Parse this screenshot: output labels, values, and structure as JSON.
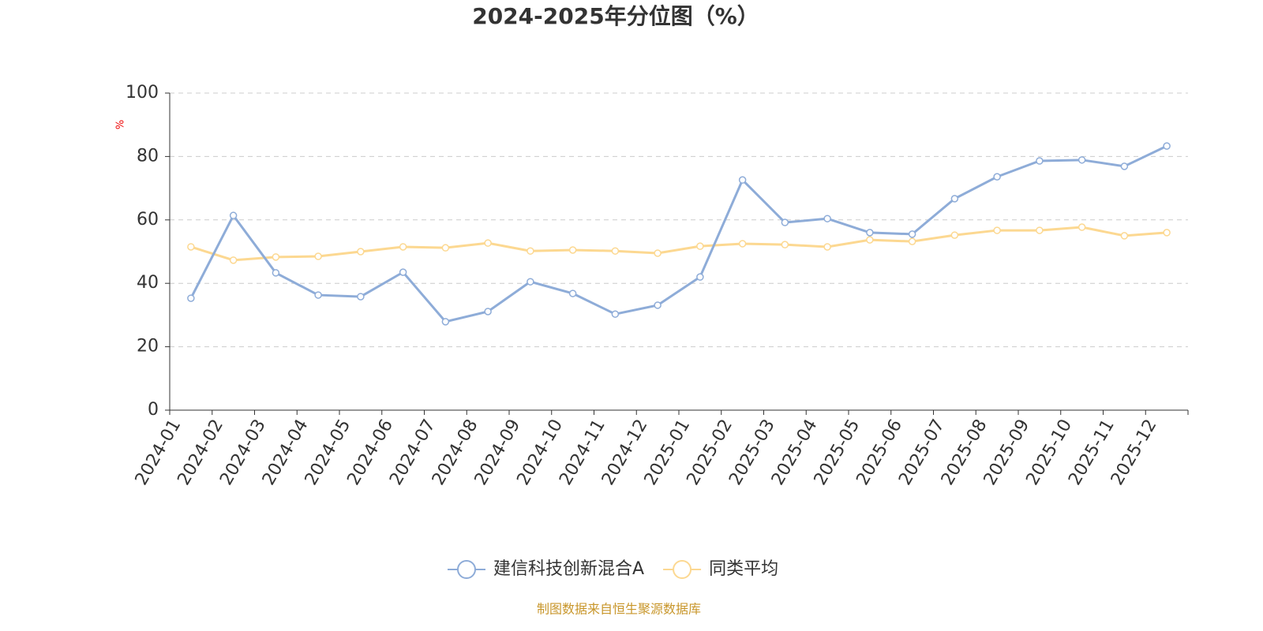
{
  "chart_data": {
    "type": "line",
    "title": "2024-2025年分位图（%）",
    "y_label": "%",
    "categories": [
      "2024-01",
      "2024-02",
      "2024-03",
      "2024-04",
      "2024-05",
      "2024-06",
      "2024-07",
      "2024-08",
      "2024-09",
      "2024-10",
      "2024-11",
      "2024-12",
      "2025-01",
      "2025-02",
      "2025-03",
      "2025-04",
      "2025-05",
      "2025-06",
      "2025-07",
      "2025-08",
      "2025-09",
      "2025-10",
      "2025-11",
      "2025-12"
    ],
    "series": [
      {
        "name": "建信科技创新混合A",
        "color": "#8eacd8",
        "values": [
          35.3,
          61.4,
          43.3,
          36.3,
          35.8,
          43.5,
          27.9,
          31.1,
          40.5,
          36.8,
          30.3,
          33.1,
          42.0,
          72.6,
          59.2,
          60.4,
          56.0,
          55.5,
          66.7,
          73.6,
          78.6,
          78.9,
          76.9,
          83.3
        ]
      },
      {
        "name": "同类平均",
        "color": "#fcd891",
        "values": [
          51.5,
          47.3,
          48.3,
          48.5,
          50.0,
          51.5,
          51.2,
          52.7,
          50.2,
          50.5,
          50.2,
          49.5,
          51.7,
          52.5,
          52.2,
          51.5,
          53.7,
          53.2,
          55.2,
          56.7,
          56.7,
          57.7,
          55.0,
          56.0
        ]
      }
    ],
    "ylim": [
      0,
      100
    ],
    "yticks": [
      0,
      20,
      40,
      60,
      80,
      100
    ],
    "grid": true,
    "source": "制图数据来自恒生聚源数据库"
  }
}
